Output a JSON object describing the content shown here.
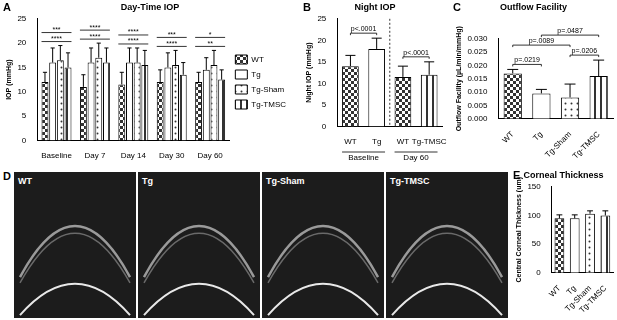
{
  "chart_data": [
    {
      "panel": "A",
      "type": "bar",
      "title": "Day-Time IOP",
      "ylabel": "IOP (mmHg)",
      "categories": [
        "Baseline",
        "Day 7",
        "Day 14",
        "Day 30",
        "Day 60"
      ],
      "series": [
        {
          "name": "WT",
          "color": "#333333",
          "values": [
            12,
            11,
            11.5,
            12,
            12
          ],
          "errors": [
            2,
            2.5,
            2.5,
            2.5,
            2
          ]
        },
        {
          "name": "Tg",
          "color": "#ffffff",
          "values": [
            16,
            16,
            16,
            15,
            14.5
          ],
          "errors": [
            3,
            3,
            3,
            3,
            2.5
          ]
        },
        {
          "name": "Tg-Sham",
          "color": "#333333",
          "values": [
            16.5,
            17,
            16,
            15.5,
            15.5
          ],
          "errors": [
            3,
            3,
            3,
            3,
            3
          ]
        },
        {
          "name": "Tg-TMSC",
          "color": "#333333",
          "values": [
            15,
            16,
            15.5,
            13.5,
            12.5
          ],
          "errors": [
            3,
            3,
            3,
            2.5,
            2
          ]
        }
      ],
      "annotations": [
        {
          "category": "Baseline",
          "text": "****"
        },
        {
          "category": "Baseline",
          "text": "***"
        },
        {
          "category": "Day 7",
          "text": "****"
        },
        {
          "category": "Day 7",
          "text": "****"
        },
        {
          "category": "Day 14",
          "text": "****"
        },
        {
          "category": "Day 14",
          "text": "****"
        },
        {
          "category": "Day 30",
          "text": "****"
        },
        {
          "category": "Day 30",
          "text": "***"
        },
        {
          "category": "Day 60",
          "text": "**"
        },
        {
          "category": "Day 60",
          "text": "*"
        }
      ],
      "ylim": [
        0,
        25
      ],
      "yticks": [
        0,
        5,
        10,
        15,
        20,
        25
      ],
      "grid": false,
      "legend": "right"
    },
    {
      "panel": "B",
      "type": "bar",
      "title": "Night IOP",
      "ylabel": "Night IOP (mmHg)",
      "categories": [
        "WT",
        "Tg",
        "WT",
        "Tg-TMSC"
      ],
      "values": [
        14,
        18,
        11.5,
        12
      ],
      "errors": [
        2.5,
        2.5,
        2.5,
        3
      ],
      "colors": [
        "#333333",
        "#ffffff",
        "#333333",
        "#333333"
      ],
      "groups": [
        {
          "label": "Baseline",
          "from": 0,
          "to": 1
        },
        {
          "label": "Day 60",
          "from": 2,
          "to": 3
        }
      ],
      "comparisons": [
        {
          "from": 0,
          "to": 1,
          "text": "p<.0001"
        },
        {
          "from": 2,
          "to": 3,
          "text": "p<.0001"
        }
      ],
      "ylim": [
        0,
        25
      ],
      "yticks": [
        0,
        5,
        10,
        15,
        20,
        25
      ],
      "grid": false
    },
    {
      "panel": "C",
      "type": "bar",
      "title": "Outflow Facility",
      "ylabel": "Outflow Facility (µL/min/mmHg)",
      "categories": [
        "WT",
        "Tg",
        "Tg-Sham",
        "Tg-TMSC"
      ],
      "values": [
        0.017,
        0.0095,
        0.008,
        0.016
      ],
      "errors": [
        0.0015,
        0.0015,
        0.005,
        0.006
      ],
      "colors": [
        "#333333",
        "#ffffff",
        "#333333",
        "#333333"
      ],
      "comparisons": [
        {
          "from": 0,
          "to": 1,
          "text": "p=.0219"
        },
        {
          "from": 2,
          "to": 3,
          "text": "p=.0206"
        },
        {
          "from": 0,
          "to": 2,
          "text": "p=.0089"
        },
        {
          "from": 1,
          "to": 3,
          "text": "p=.0487"
        }
      ],
      "ylim": [
        0,
        0.03
      ],
      "yticks": [
        {
          "value": 0,
          "label": "0.000"
        },
        {
          "value": 0.005,
          "label": "0.005"
        },
        {
          "value": 0.01,
          "label": "0.010"
        },
        {
          "value": 0.015,
          "label": "0.015"
        },
        {
          "value": 0.02,
          "label": "0.020"
        },
        {
          "value": 0.025,
          "label": "0.025"
        },
        {
          "value": 0.03,
          "label": "0.030"
        }
      ],
      "grid": false
    },
    {
      "panel": "E",
      "type": "bar",
      "title": "Corneal Thickness",
      "ylabel": "Central Corneal Thickness (um)",
      "categories": [
        "WT",
        "Tg",
        "Tg-Sham",
        "Tg-TMSC"
      ],
      "values": [
        95,
        95,
        103,
        100
      ],
      "errors": [
        6,
        6,
        5,
        8
      ],
      "colors": [
        "#333333",
        "#ffffff",
        "#333333",
        "#333333"
      ],
      "ylim": [
        0,
        150
      ],
      "yticks": [
        0,
        50,
        100,
        150
      ],
      "grid": false
    }
  ],
  "figure_panels": [
    {
      "panel": "D",
      "labels": [
        "WT",
        "Tg",
        "Tg-Sham",
        "Tg-TMSC"
      ]
    }
  ]
}
